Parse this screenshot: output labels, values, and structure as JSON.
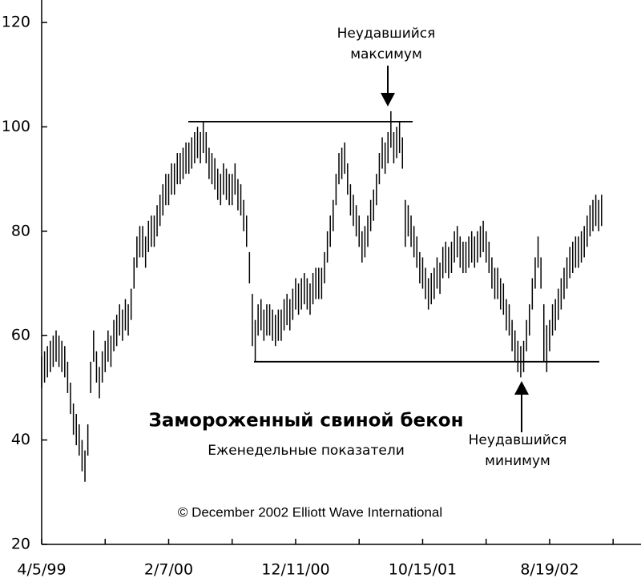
{
  "chart_data": {
    "type": "hilo",
    "title": "Замороженный свиной бекон",
    "subtitle": "Еженедельные показатели",
    "copyright": "© December 2002 Elliott Wave International",
    "annotations": [
      {
        "lines": [
          "Неудавшийся",
          "максимум"
        ]
      },
      {
        "lines": [
          "Неудавшийся",
          "минимум"
        ]
      }
    ],
    "levels": [
      101,
      55
    ],
    "color": "#000000",
    "ylim": [
      20,
      124
    ],
    "yticks": [
      20,
      40,
      60,
      80,
      100,
      120
    ],
    "categories": [
      "4/5/99",
      null,
      null,
      null,
      null,
      null,
      null,
      null,
      null,
      null,
      null,
      null,
      null,
      null,
      null,
      null,
      null,
      null,
      null,
      null,
      null,
      null,
      null,
      null,
      null,
      null,
      null,
      null,
      null,
      null,
      null,
      null,
      null,
      null,
      null,
      null,
      null,
      null,
      null,
      null,
      null,
      null,
      null,
      null,
      "2/7/00",
      null,
      null,
      null,
      null,
      null,
      null,
      null,
      null,
      null,
      null,
      null,
      null,
      null,
      null,
      null,
      null,
      null,
      null,
      null,
      null,
      null,
      null,
      null,
      null,
      null,
      null,
      null,
      null,
      null,
      null,
      null,
      null,
      null,
      null,
      null,
      null,
      null,
      null,
      null,
      null,
      null,
      null,
      null,
      "12/11/00",
      null,
      null,
      null,
      null,
      null,
      null,
      null,
      null,
      null,
      null,
      null,
      null,
      null,
      null,
      null,
      null,
      null,
      null,
      null,
      null,
      null,
      null,
      null,
      null,
      null,
      null,
      null,
      null,
      null,
      null,
      null,
      null,
      null,
      null,
      null,
      null,
      null,
      null,
      null,
      null,
      null,
      null,
      null,
      "10/15/01",
      null,
      null,
      null,
      null,
      null,
      null,
      null,
      null,
      null,
      null,
      null,
      null,
      null,
      null,
      null,
      null,
      null,
      null,
      null,
      null,
      null,
      null,
      null,
      null,
      null,
      null,
      null,
      null,
      null,
      null,
      null,
      null,
      null,
      null,
      null,
      null,
      null,
      null,
      null,
      null,
      null,
      null,
      null,
      "8/19/02",
      null,
      null,
      null,
      null,
      null,
      null,
      null,
      null,
      null,
      null,
      null,
      null,
      null,
      null,
      null,
      null,
      null,
      null
    ],
    "high": [
      56,
      57,
      58,
      59,
      60,
      61,
      60,
      59,
      58,
      55,
      51,
      47,
      45,
      43,
      40,
      38,
      43,
      55,
      61,
      57,
      54,
      57,
      59,
      61,
      60,
      63,
      64,
      66,
      65,
      67,
      66,
      69,
      75,
      79,
      81,
      81,
      79,
      82,
      83,
      83,
      85,
      87,
      89,
      91,
      91,
      93,
      93,
      95,
      95,
      96,
      97,
      97,
      98,
      99,
      100,
      99,
      101,
      99,
      96,
      95,
      94,
      92,
      91,
      93,
      92,
      91,
      91,
      93,
      90,
      89,
      86,
      83,
      76,
      68,
      63,
      66,
      67,
      65,
      66,
      66,
      65,
      64,
      65,
      65,
      67,
      68,
      67,
      69,
      71,
      70,
      71,
      72,
      71,
      70,
      72,
      73,
      73,
      73,
      76,
      80,
      83,
      86,
      91,
      95,
      96,
      97,
      93,
      89,
      87,
      85,
      83,
      80,
      81,
      83,
      86,
      88,
      91,
      95,
      98,
      97,
      99,
      103,
      99,
      100,
      101,
      98,
      86,
      85,
      83,
      81,
      79,
      76,
      75,
      73,
      71,
      72,
      73,
      75,
      74,
      77,
      78,
      77,
      78,
      80,
      81,
      79,
      78,
      78,
      79,
      80,
      79,
      80,
      81,
      82,
      80,
      78,
      75,
      73,
      73,
      71,
      70,
      67,
      66,
      63,
      61,
      59,
      58,
      59,
      63,
      66,
      71,
      75,
      79,
      75,
      66,
      62,
      63,
      66,
      67,
      69,
      71,
      73,
      75,
      77,
      78,
      79,
      79,
      80,
      81,
      83,
      85,
      86,
      87,
      86,
      87
    ],
    "low": [
      50,
      51,
      52,
      53,
      54,
      55,
      54,
      53,
      52,
      49,
      45,
      41,
      39,
      37,
      34,
      32,
      37,
      49,
      55,
      51,
      48,
      51,
      53,
      55,
      54,
      57,
      58,
      60,
      59,
      61,
      60,
      63,
      69,
      73,
      75,
      75,
      73,
      76,
      77,
      77,
      79,
      81,
      83,
      85,
      85,
      87,
      87,
      89,
      89,
      90,
      91,
      91,
      92,
      93,
      94,
      93,
      95,
      93,
      90,
      89,
      88,
      86,
      85,
      87,
      86,
      85,
      85,
      87,
      84,
      83,
      80,
      77,
      70,
      58,
      55,
      60,
      61,
      59,
      60,
      60,
      59,
      58,
      59,
      59,
      61,
      62,
      61,
      63,
      65,
      64,
      65,
      66,
      65,
      64,
      66,
      67,
      67,
      67,
      70,
      74,
      77,
      80,
      85,
      89,
      90,
      91,
      87,
      83,
      81,
      79,
      77,
      74,
      75,
      77,
      80,
      82,
      85,
      89,
      92,
      91,
      93,
      96,
      93,
      94,
      95,
      92,
      77,
      79,
      77,
      75,
      73,
      70,
      69,
      67,
      65,
      66,
      67,
      69,
      68,
      71,
      72,
      71,
      72,
      74,
      75,
      73,
      72,
      72,
      73,
      74,
      73,
      74,
      75,
      76,
      74,
      72,
      69,
      67,
      67,
      65,
      64,
      61,
      60,
      57,
      55,
      53,
      52,
      53,
      57,
      60,
      65,
      69,
      73,
      69,
      55,
      53,
      57,
      60,
      61,
      63,
      65,
      67,
      69,
      71,
      72,
      73,
      73,
      74,
      75,
      77,
      79,
      80,
      81,
      80,
      81
    ]
  }
}
